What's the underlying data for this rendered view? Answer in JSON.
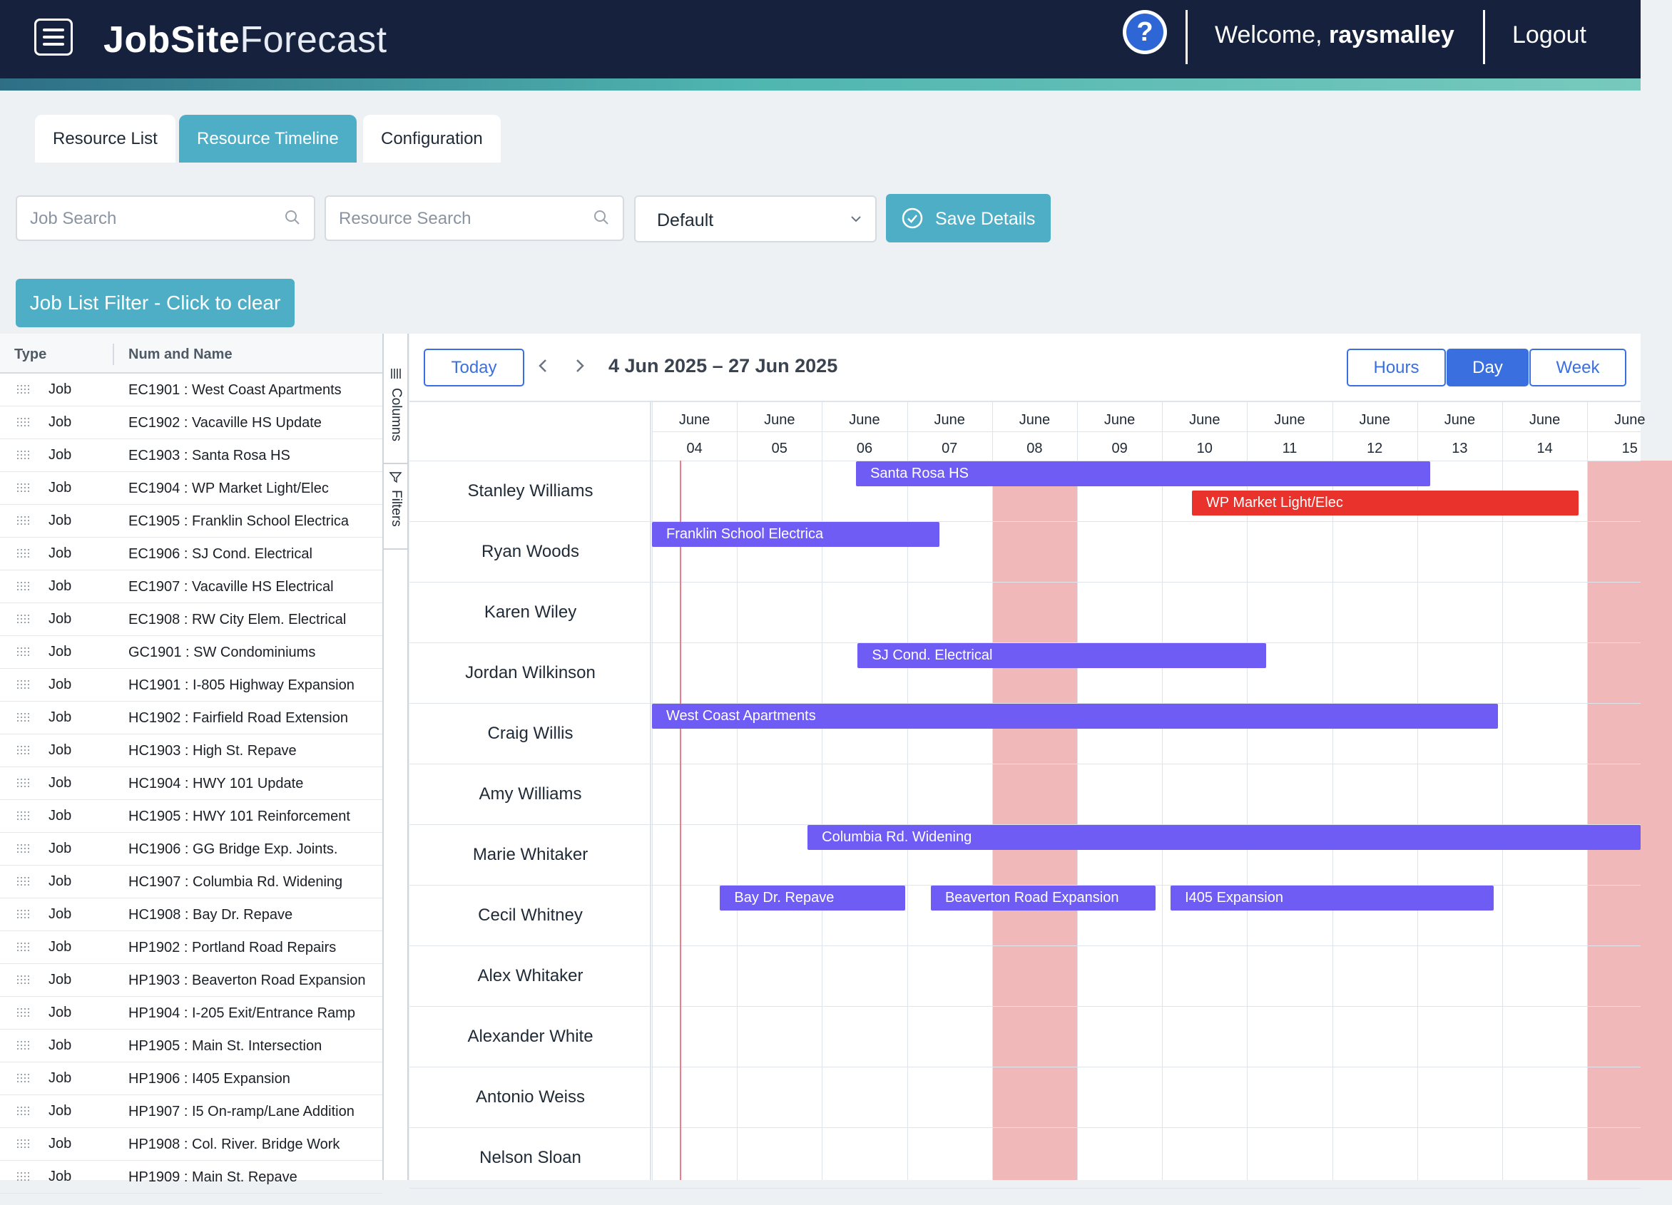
{
  "header": {
    "brand_bold": "JobSite",
    "brand_light": "Forecast",
    "welcome_prefix": "Welcome, ",
    "username": "raysmalley",
    "logout_label": "Logout",
    "help_glyph": "?"
  },
  "tabs": [
    {
      "label": "Resource List"
    },
    {
      "label": "Resource Timeline"
    },
    {
      "label": "Configuration"
    }
  ],
  "toolbar": {
    "job_search_placeholder": "Job Search",
    "resource_search_placeholder": "Resource Search",
    "view_select_value": "Default",
    "save_label": "Save Details",
    "filter_label": "Job List Filter - Click to clear"
  },
  "job_list": {
    "col_type": "Type",
    "col_name": "Num and Name",
    "side_columns": "Columns",
    "side_filters": "Filters",
    "rows": [
      {
        "type": "Job",
        "name": "EC1901 : West Coast Apartments"
      },
      {
        "type": "Job",
        "name": "EC1902 : Vacaville HS Update"
      },
      {
        "type": "Job",
        "name": "EC1903 : Santa Rosa HS"
      },
      {
        "type": "Job",
        "name": "EC1904 : WP Market Light/Elec"
      },
      {
        "type": "Job",
        "name": "EC1905 : Franklin School Electrica"
      },
      {
        "type": "Job",
        "name": "EC1906 : SJ Cond. Electrical"
      },
      {
        "type": "Job",
        "name": "EC1907 : Vacaville HS Electrical"
      },
      {
        "type": "Job",
        "name": "EC1908 : RW City Elem. Electrical"
      },
      {
        "type": "Job",
        "name": "GC1901 : SW Condominiums"
      },
      {
        "type": "Job",
        "name": "HC1901 : I-805 Highway Expansion"
      },
      {
        "type": "Job",
        "name": "HC1902 : Fairfield Road Extension"
      },
      {
        "type": "Job",
        "name": "HC1903 : High St. Repave"
      },
      {
        "type": "Job",
        "name": "HC1904 : HWY 101 Update"
      },
      {
        "type": "Job",
        "name": "HC1905 : HWY 101 Reinforcement"
      },
      {
        "type": "Job",
        "name": "HC1906 : GG Bridge Exp. Joints."
      },
      {
        "type": "Job",
        "name": "HC1907 : Columbia Rd. Widening"
      },
      {
        "type": "Job",
        "name": "HC1908 : Bay Dr. Repave"
      },
      {
        "type": "Job",
        "name": "HP1902 : Portland Road Repairs"
      },
      {
        "type": "Job",
        "name": "HP1903 : Beaverton Road Expansion"
      },
      {
        "type": "Job",
        "name": "HP1904 : I-205 Exit/Entrance Ramp"
      },
      {
        "type": "Job",
        "name": "HP1905 : Main St. Intersection"
      },
      {
        "type": "Job",
        "name": "HP1906 : I405 Expansion"
      },
      {
        "type": "Job",
        "name": "HP1907 : I5 On-ramp/Lane Addition"
      },
      {
        "type": "Job",
        "name": "HP1908 : Col. River. Bridge Work"
      },
      {
        "type": "Job",
        "name": "HP1909 : Main St. Repave"
      }
    ]
  },
  "timeline": {
    "today_label": "Today",
    "prev_icon": "chevron-left-icon",
    "next_icon": "chevron-right-icon",
    "range_label": "4 Jun 2025 – 27 Jun 2025",
    "view_hours": "Hours",
    "view_day": "Day",
    "view_week": "Week",
    "days": [
      {
        "month": "June",
        "day": "04",
        "weekend": false
      },
      {
        "month": "June",
        "day": "05",
        "weekend": false
      },
      {
        "month": "June",
        "day": "06",
        "weekend": false
      },
      {
        "month": "June",
        "day": "07",
        "weekend": false
      },
      {
        "month": "June",
        "day": "08",
        "weekend": true
      },
      {
        "month": "June",
        "day": "09",
        "weekend": false
      },
      {
        "month": "June",
        "day": "10",
        "weekend": false
      },
      {
        "month": "June",
        "day": "11",
        "weekend": false
      },
      {
        "month": "June",
        "day": "12",
        "weekend": false
      },
      {
        "month": "June",
        "day": "13",
        "weekend": false
      },
      {
        "month": "June",
        "day": "14",
        "weekend": false
      },
      {
        "month": "June",
        "day": "15",
        "weekend": true
      }
    ],
    "resources": [
      {
        "name": "Stanley Williams"
      },
      {
        "name": "Ryan Woods"
      },
      {
        "name": "Karen Wiley"
      },
      {
        "name": "Jordan Wilkinson"
      },
      {
        "name": "Craig Willis"
      },
      {
        "name": "Amy Williams"
      },
      {
        "name": "Marie Whitaker"
      },
      {
        "name": "Cecil Whitney"
      },
      {
        "name": "Alex Whitaker"
      },
      {
        "name": "Alexander White"
      },
      {
        "name": "Antonio Weiss"
      },
      {
        "name": "Nelson Sloan"
      }
    ],
    "events": [
      {
        "resource": 0,
        "lane": 0,
        "start": 2.4,
        "end": 9.15,
        "label": "Santa Rosa HS",
        "color": "#6e5cf4"
      },
      {
        "resource": 0,
        "lane": 1,
        "start": 6.35,
        "end": 10.9,
        "label": "WP Market Light/Elec",
        "color": "#e8322b"
      },
      {
        "resource": 1,
        "lane": 0,
        "start": 0.0,
        "end": 3.38,
        "label": "Franklin School Electrica",
        "color": "#6e5cf4"
      },
      {
        "resource": 3,
        "lane": 0,
        "start": 2.42,
        "end": 7.22,
        "label": "SJ Cond. Electrical",
        "color": "#6e5cf4"
      },
      {
        "resource": 4,
        "lane": 0,
        "start": 0.0,
        "end": 9.95,
        "label": "West Coast Apartments",
        "color": "#6e5cf4"
      },
      {
        "resource": 6,
        "lane": 0,
        "start": 1.83,
        "end": 12.0,
        "label": "Columbia Rd. Widening",
        "color": "#6e5cf4"
      },
      {
        "resource": 7,
        "lane": 0,
        "start": 0.8,
        "end": 2.98,
        "label": "Bay Dr. Repave",
        "color": "#6e5cf4"
      },
      {
        "resource": 7,
        "lane": 0,
        "start": 3.28,
        "end": 5.92,
        "label": "Beaverton Road Expansion",
        "color": "#6e5cf4"
      },
      {
        "resource": 7,
        "lane": 0,
        "start": 6.1,
        "end": 9.9,
        "label": "I405 Expansion",
        "color": "#6e5cf4"
      }
    ]
  }
}
